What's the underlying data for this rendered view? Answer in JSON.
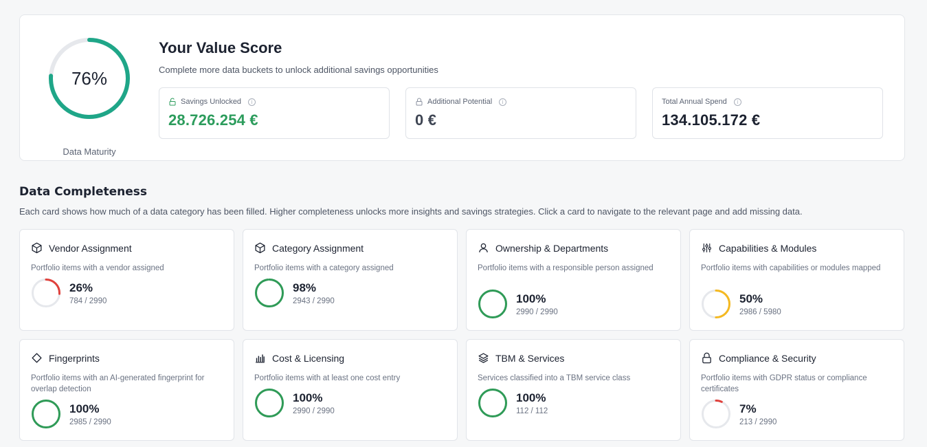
{
  "value_score": {
    "maturity_percent": 76,
    "maturity_text": "76%",
    "maturity_label": "Data Maturity",
    "title": "Your Value Score",
    "subtitle": "Complete more data buckets to unlock additional savings opportunities",
    "metrics": [
      {
        "label": "Savings Unlocked",
        "value": "28.726.254 €",
        "icon": "lock-open-icon",
        "color": "#2c9c5c",
        "icon_color": "#2c9c5c"
      },
      {
        "label": "Additional Potential",
        "value": "0 €",
        "icon": "lock-icon",
        "color": "#3e4553",
        "icon_color": "#8b92a0"
      },
      {
        "label": "Total Annual Spend",
        "value": "134.105.172 €",
        "icon": "",
        "color": "#1c2230",
        "icon_color": ""
      }
    ],
    "info_glyph": "i"
  },
  "completeness": {
    "title": "Data Completeness",
    "description": "Each card shows how much of a data category has been filled. Higher completeness unlocks more insights and savings strategies. Click a card to navigate to the relevant page and add missing data.",
    "cards": [
      {
        "title": "Vendor Assignment",
        "icon": "box-icon",
        "desc": "Portfolio items with a vendor assigned",
        "percent": 26,
        "pct_text": "26%",
        "count": "784 / 2990",
        "color": "#e0413c"
      },
      {
        "title": "Category Assignment",
        "icon": "box-icon",
        "desc": "Portfolio items with a category assigned",
        "percent": 98,
        "pct_text": "98%",
        "count": "2943 / 2990",
        "color": "#2f9b57"
      },
      {
        "title": "Ownership & Departments",
        "icon": "user-icon",
        "desc": "Portfolio items with a responsible person assigned",
        "percent": 100,
        "pct_text": "100%",
        "count": "2990 / 2990",
        "color": "#2f9b57"
      },
      {
        "title": "Capabilities & Modules",
        "icon": "sliders-icon",
        "desc": "Portfolio items with capabilities or modules mapped",
        "percent": 50,
        "pct_text": "50%",
        "count": "2986 / 5980",
        "color": "#f5b921"
      },
      {
        "title": "Fingerprints",
        "icon": "diamond-icon",
        "desc": "Portfolio items with an AI-generated fingerprint for overlap detection",
        "percent": 100,
        "pct_text": "100%",
        "count": "2985 / 2990",
        "color": "#2f9b57"
      },
      {
        "title": "Cost & Licensing",
        "icon": "bar-chart-icon",
        "desc": "Portfolio items with at least one cost entry",
        "percent": 100,
        "pct_text": "100%",
        "count": "2990 / 2990",
        "color": "#2f9b57"
      },
      {
        "title": "TBM & Services",
        "icon": "layers-icon",
        "desc": "Services classified into a TBM service class",
        "percent": 100,
        "pct_text": "100%",
        "count": "112 / 112",
        "color": "#2f9b57"
      },
      {
        "title": "Compliance & Security",
        "icon": "lock-icon",
        "desc": "Portfolio items with GDPR status or compliance certificates",
        "percent": 7,
        "pct_text": "7%",
        "count": "213 / 2990",
        "color": "#e0413c"
      }
    ]
  },
  "colors": {
    "maturity_ring": "#1fa688",
    "track": "#e6e8ec"
  }
}
